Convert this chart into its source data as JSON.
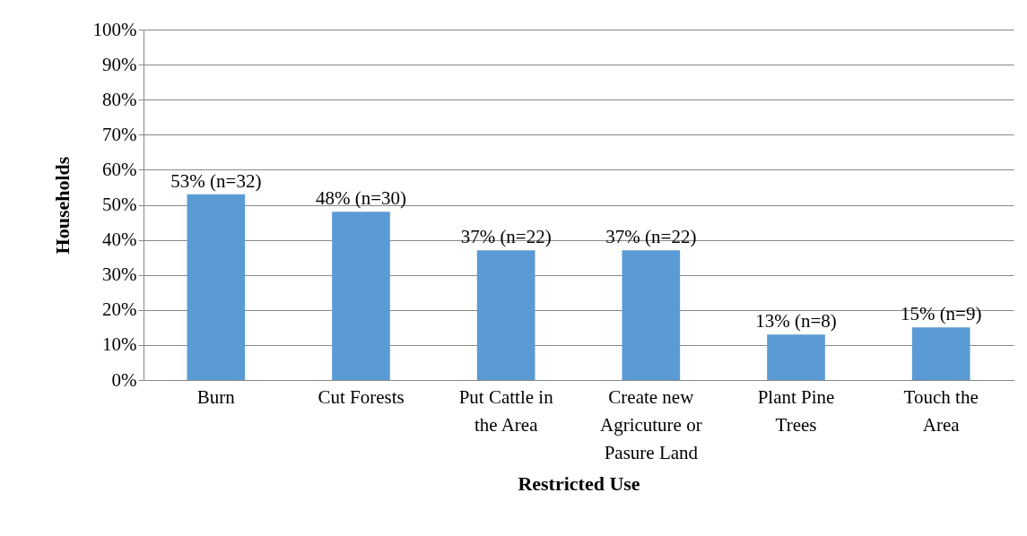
{
  "chart_data": {
    "type": "bar",
    "xlabel": "Restricted Use",
    "ylabel": "Households",
    "categories": [
      "Burn",
      "Cut Forests",
      "Put Cattle in the Area",
      "Create new Agricuture or Pasure Land",
      "Plant Pine Trees",
      "Touch the Area"
    ],
    "values": [
      53,
      48,
      37,
      37,
      13,
      15
    ],
    "value_labels": [
      "53% (n=32)",
      "48% (n=30)",
      "37% (n=22)",
      "37% (n=22)",
      "13% (n=8)",
      "15% (n=9)"
    ],
    "color": "#5b9bd5",
    "ylim": [
      0,
      100
    ],
    "yticks": [
      {
        "value": 0,
        "label": "0%"
      },
      {
        "value": 10,
        "label": "10%"
      },
      {
        "value": 20,
        "label": "20%"
      },
      {
        "value": 30,
        "label": "30%"
      },
      {
        "value": 40,
        "label": "40%"
      },
      {
        "value": 50,
        "label": "50%"
      },
      {
        "value": 60,
        "label": "60%"
      },
      {
        "value": 70,
        "label": "70%"
      },
      {
        "value": 80,
        "label": "80%"
      },
      {
        "value": 90,
        "label": "90%"
      },
      {
        "value": 100,
        "label": "100%"
      }
    ],
    "grid": "y"
  }
}
